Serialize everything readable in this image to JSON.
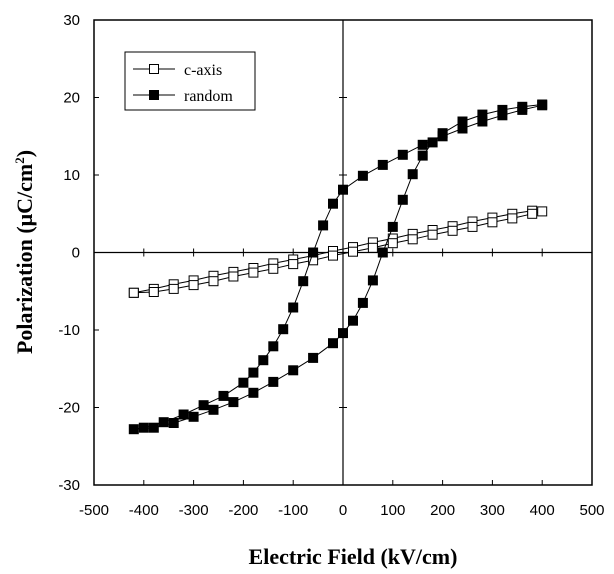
{
  "chart_data": {
    "type": "scatter",
    "title": "",
    "xlabel": "Electric Field (kV/cm)",
    "ylabel_text": "Polarization  (μC/cm",
    "ylabel_sup": "2",
    "ylabel_close": ")",
    "xlim": [
      -500,
      500
    ],
    "ylim": [
      -30,
      30
    ],
    "x_ticks": [
      -500,
      -400,
      -300,
      -200,
      -100,
      0,
      100,
      200,
      300,
      400,
      500
    ],
    "y_ticks": [
      -30,
      -20,
      -10,
      0,
      10,
      20,
      30
    ],
    "grid": false,
    "legend_position": "top-left",
    "series": [
      {
        "name": "c-axis",
        "marker": "open-square",
        "color": "#000000",
        "x": [
          -420,
          -380,
          -340,
          -300,
          -260,
          -220,
          -180,
          -140,
          -100,
          -60,
          -20,
          20,
          60,
          100,
          140,
          180,
          220,
          260,
          300,
          340,
          380,
          400,
          380,
          340,
          300,
          260,
          220,
          180,
          140,
          100,
          60,
          20,
          -20,
          -60,
          -100,
          -140,
          -180,
          -220,
          -260,
          -300,
          -340,
          -380,
          -420
        ],
        "y": [
          -5.2,
          -4.7,
          -4.1,
          -3.6,
          -3.0,
          -2.5,
          -2.0,
          -1.4,
          -0.9,
          -0.4,
          0.2,
          0.7,
          1.3,
          1.8,
          2.4,
          2.9,
          3.4,
          4.0,
          4.5,
          5.0,
          5.4,
          5.3,
          5.0,
          4.4,
          3.9,
          3.3,
          2.8,
          2.3,
          1.7,
          1.2,
          0.6,
          0.1,
          -0.4,
          -1.0,
          -1.5,
          -2.1,
          -2.6,
          -3.1,
          -3.7,
          -4.2,
          -4.7,
          -5.1,
          -5.2
        ]
      },
      {
        "name": "random",
        "marker": "filled-square",
        "color": "#000000",
        "x": [
          400,
          360,
          320,
          280,
          240,
          200,
          160,
          120,
          80,
          40,
          0,
          -20,
          -40,
          -60,
          -80,
          -100,
          -120,
          -140,
          -160,
          -180,
          -200,
          -240,
          -280,
          -320,
          -360,
          -400,
          -420,
          -380,
          -340,
          -300,
          -260,
          -220,
          -180,
          -140,
          -100,
          -60,
          -20,
          0,
          20,
          40,
          60,
          80,
          100,
          120,
          140,
          160,
          180,
          200,
          240,
          280,
          320,
          360,
          400
        ],
        "y": [
          19.0,
          18.4,
          17.7,
          16.9,
          16.0,
          15.0,
          13.9,
          12.6,
          11.3,
          9.9,
          8.1,
          6.3,
          3.5,
          0.0,
          -3.7,
          -7.1,
          -9.9,
          -12.1,
          -13.9,
          -15.5,
          -16.8,
          -18.5,
          -19.7,
          -20.9,
          -21.9,
          -22.6,
          -22.8,
          -22.6,
          -22.0,
          -21.2,
          -20.3,
          -19.3,
          -18.1,
          -16.7,
          -15.2,
          -13.6,
          -11.7,
          -10.4,
          -8.8,
          -6.5,
          -3.6,
          0.0,
          3.3,
          6.8,
          10.1,
          12.5,
          14.2,
          15.4,
          16.9,
          17.8,
          18.4,
          18.8,
          19.1
        ]
      }
    ]
  }
}
